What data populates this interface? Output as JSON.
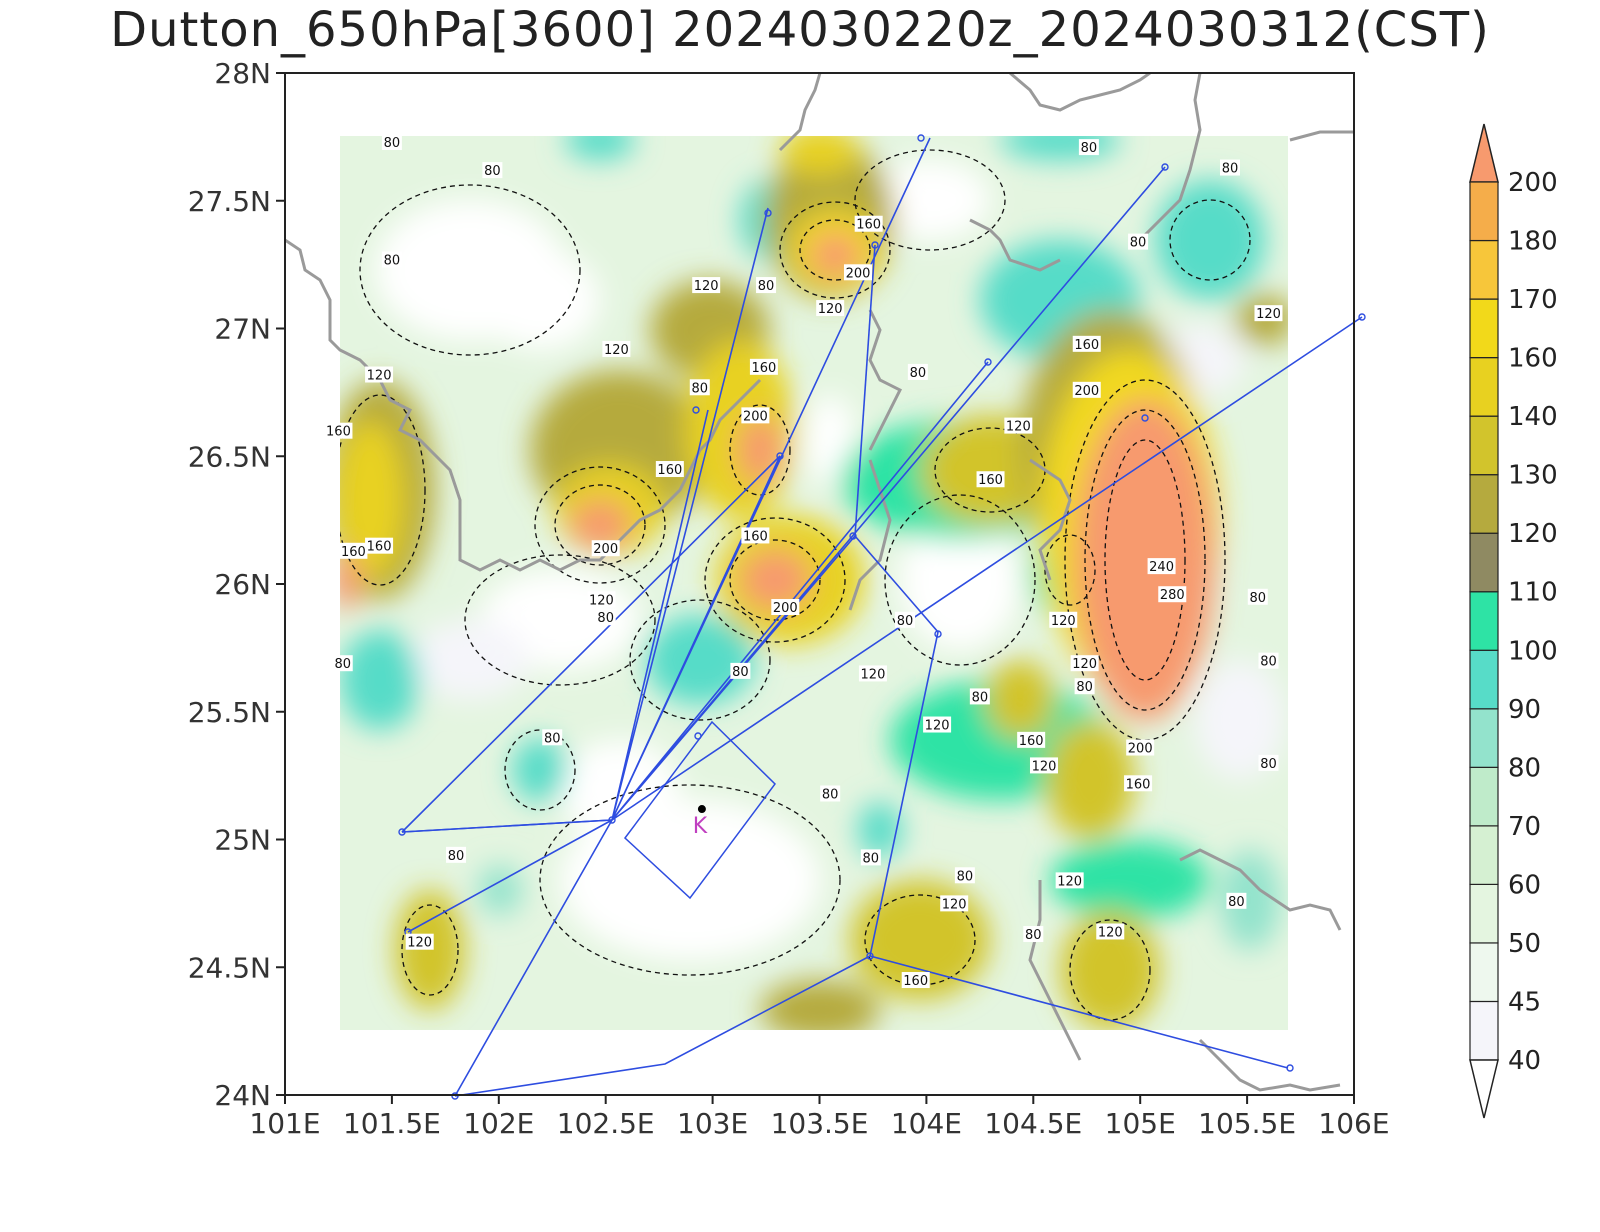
{
  "title": "Dutton_650hPa[3600] 2024030220z_2024030312(CST)",
  "map": {
    "lon_range": [
      101,
      106
    ],
    "lat_range": [
      24,
      28
    ],
    "x_ticks": [
      "101E",
      "101.5E",
      "102E",
      "102.5E",
      "103E",
      "103.5E",
      "104E",
      "104.5E",
      "105E",
      "105.5E",
      "106E"
    ],
    "y_ticks": [
      "24N",
      "24.5N",
      "25N",
      "25.5N",
      "26N",
      "26.5N",
      "27N",
      "27.5N",
      "28N"
    ],
    "station_marker": "K",
    "station_lon": 102.95,
    "station_lat": 25.08
  },
  "colorbar": {
    "labels": [
      "40",
      "45",
      "50",
      "60",
      "70",
      "80",
      "90",
      "100",
      "110",
      "120",
      "130",
      "140",
      "160",
      "170",
      "180",
      "200"
    ],
    "colors": [
      "#f5f5fa",
      "#eef8ee",
      "#e4f5e0",
      "#d5f0d2",
      "#bfebca",
      "#93e3cc",
      "#57dcc8",
      "#2ee3a5",
      "#8f8a62",
      "#b5aa3e",
      "#d2c42c",
      "#e8d120",
      "#f2d91a",
      "#f7c63a",
      "#f5ad4a",
      "#f79a6e"
    ]
  },
  "contour_labels": [
    {
      "text": "80",
      "lon": 101.5,
      "lat": 27.73
    },
    {
      "text": "80",
      "lon": 101.97,
      "lat": 27.62
    },
    {
      "text": "80",
      "lon": 101.5,
      "lat": 27.27
    },
    {
      "text": "120",
      "lon": 101.44,
      "lat": 26.82
    },
    {
      "text": "160",
      "lon": 101.25,
      "lat": 26.6
    },
    {
      "text": "160",
      "lon": 101.32,
      "lat": 26.13
    },
    {
      "text": "160",
      "lon": 101.44,
      "lat": 26.15
    },
    {
      "text": "80",
      "lon": 101.27,
      "lat": 25.69
    },
    {
      "text": "120",
      "lon": 102.55,
      "lat": 26.92
    },
    {
      "text": "120",
      "lon": 102.97,
      "lat": 27.17
    },
    {
      "text": "80",
      "lon": 103.25,
      "lat": 27.17
    },
    {
      "text": "80",
      "lon": 102.94,
      "lat": 26.77
    },
    {
      "text": "160",
      "lon": 103.24,
      "lat": 26.85
    },
    {
      "text": "200",
      "lon": 103.2,
      "lat": 26.66
    },
    {
      "text": "160",
      "lon": 102.8,
      "lat": 26.45
    },
    {
      "text": "200",
      "lon": 102.5,
      "lat": 26.14
    },
    {
      "text": "120",
      "lon": 102.48,
      "lat": 25.94
    },
    {
      "text": "80",
      "lon": 102.5,
      "lat": 25.87
    },
    {
      "text": "160",
      "lon": 103.73,
      "lat": 27.41
    },
    {
      "text": "200",
      "lon": 103.68,
      "lat": 27.22
    },
    {
      "text": "120",
      "lon": 103.55,
      "lat": 27.08
    },
    {
      "text": "160",
      "lon": 103.2,
      "lat": 26.19
    },
    {
      "text": "200",
      "lon": 103.34,
      "lat": 25.91
    },
    {
      "text": "80",
      "lon": 103.13,
      "lat": 25.66
    },
    {
      "text": "120",
      "lon": 103.75,
      "lat": 25.65
    },
    {
      "text": "80",
      "lon": 103.9,
      "lat": 25.86
    },
    {
      "text": "80",
      "lon": 103.96,
      "lat": 26.83
    },
    {
      "text": "120",
      "lon": 104.43,
      "lat": 26.62
    },
    {
      "text": "160",
      "lon": 104.3,
      "lat": 26.41
    },
    {
      "text": "160",
      "lon": 104.75,
      "lat": 26.94
    },
    {
      "text": "200",
      "lon": 104.75,
      "lat": 26.76
    },
    {
      "text": "240",
      "lon": 105.1,
      "lat": 26.07
    },
    {
      "text": "280",
      "lon": 105.15,
      "lat": 25.96
    },
    {
      "text": "120",
      "lon": 104.64,
      "lat": 25.86
    },
    {
      "text": "120",
      "lon": 104.74,
      "lat": 25.69
    },
    {
      "text": "80",
      "lon": 104.74,
      "lat": 25.6
    },
    {
      "text": "200",
      "lon": 105.0,
      "lat": 25.36
    },
    {
      "text": "160",
      "lon": 104.99,
      "lat": 25.22
    },
    {
      "text": "160",
      "lon": 104.49,
      "lat": 25.39
    },
    {
      "text": "120",
      "lon": 104.55,
      "lat": 25.29
    },
    {
      "text": "80",
      "lon": 104.25,
      "lat": 25.56
    },
    {
      "text": "120",
      "lon": 104.05,
      "lat": 25.45
    },
    {
      "text": "80",
      "lon": 105.6,
      "lat": 25.7
    },
    {
      "text": "80",
      "lon": 105.6,
      "lat": 25.3
    },
    {
      "text": "80",
      "lon": 105.55,
      "lat": 25.95
    },
    {
      "text": "120",
      "lon": 105.6,
      "lat": 27.06
    },
    {
      "text": "80",
      "lon": 104.76,
      "lat": 27.71
    },
    {
      "text": "80",
      "lon": 104.99,
      "lat": 27.34
    },
    {
      "text": "80",
      "lon": 105.42,
      "lat": 27.63
    },
    {
      "text": "80",
      "lon": 102.25,
      "lat": 25.4
    },
    {
      "text": "80",
      "lon": 103.55,
      "lat": 25.18
    },
    {
      "text": "80",
      "lon": 101.8,
      "lat": 24.94
    },
    {
      "text": "80",
      "lon": 103.74,
      "lat": 24.93
    },
    {
      "text": "80",
      "lon": 104.18,
      "lat": 24.86
    },
    {
      "text": "120",
      "lon": 101.63,
      "lat": 24.6
    },
    {
      "text": "120",
      "lon": 104.13,
      "lat": 24.75
    },
    {
      "text": "160",
      "lon": 103.95,
      "lat": 24.45
    },
    {
      "text": "80",
      "lon": 104.5,
      "lat": 24.63
    },
    {
      "text": "120",
      "lon": 104.67,
      "lat": 24.84
    },
    {
      "text": "120",
      "lon": 104.86,
      "lat": 24.64
    },
    {
      "text": "80",
      "lon": 105.45,
      "lat": 24.76
    }
  ]
}
